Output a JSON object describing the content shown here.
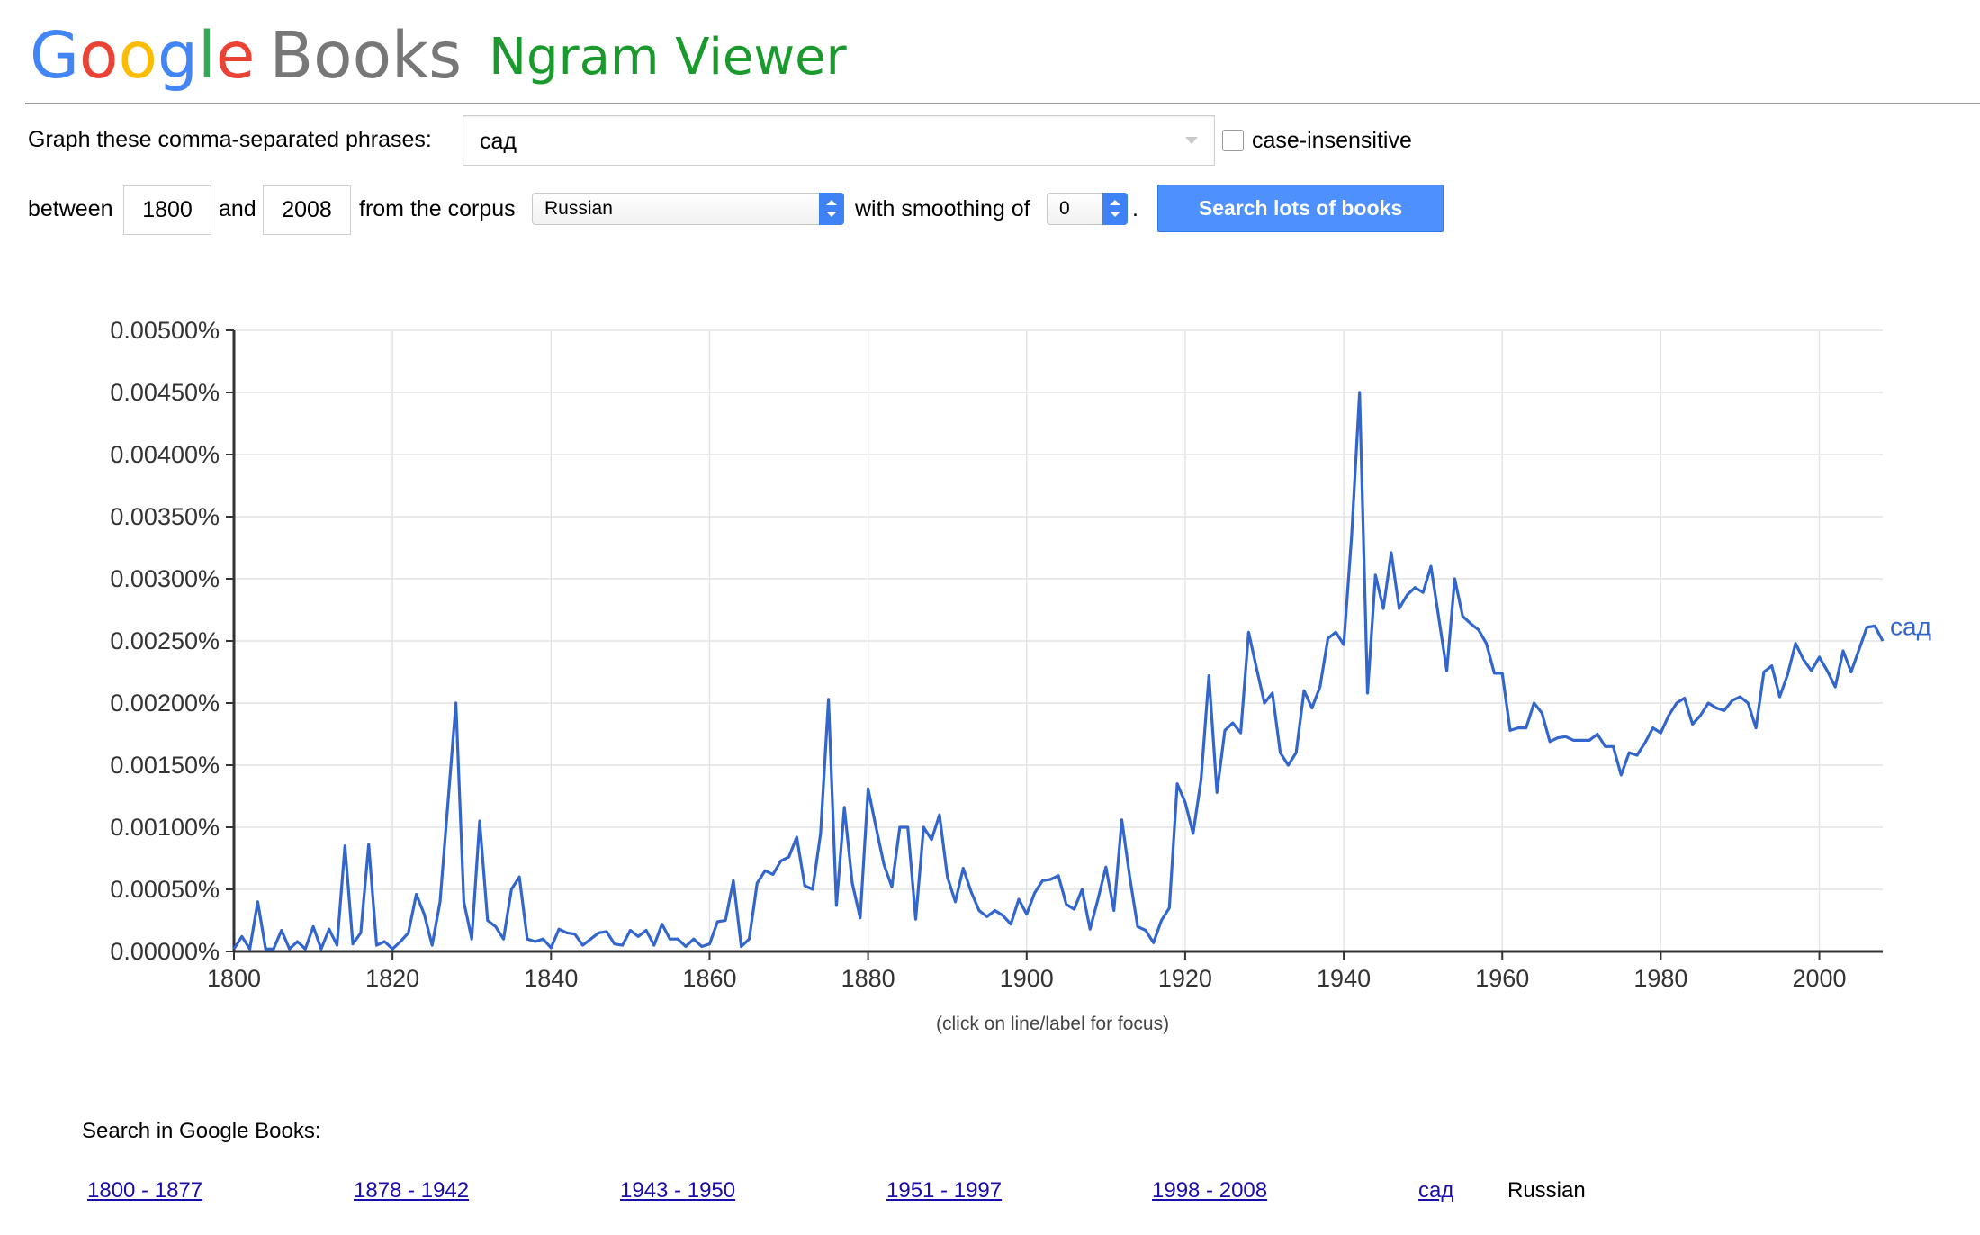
{
  "header": {
    "brand_google": "Google",
    "brand_books": "Books",
    "app_title": "Ngram Viewer",
    "google_colors": [
      "#4285f4",
      "#ea4335",
      "#fbbc05",
      "#4285f4",
      "#34a853",
      "#ea4335"
    ]
  },
  "form": {
    "phrases_label": "Graph these comma-separated phrases:",
    "phrases_value": "сад",
    "case_insensitive_label": "case-insensitive",
    "between_label": "between",
    "year_start": "1800",
    "and_label": "and",
    "year_end": "2008",
    "corpus_label": "from the corpus",
    "corpus_value": "Russian",
    "smoothing_label": "with smoothing of",
    "smoothing_value": "0",
    "period": ".",
    "search_button": "Search lots of books"
  },
  "chart_note": "(click on line/label for focus)",
  "chart_data": {
    "type": "line",
    "title": "",
    "xlabel": "",
    "ylabel": "",
    "xlim": [
      1800,
      2008
    ],
    "ylim": [
      0,
      0.005
    ],
    "x_ticks": [
      1800,
      1820,
      1840,
      1860,
      1880,
      1900,
      1920,
      1940,
      1960,
      1980,
      2000
    ],
    "y_tick_labels": [
      "0.00000%",
      "0.00050%",
      "0.00100%",
      "0.00150%",
      "0.00200%",
      "0.00250%",
      "0.00300%",
      "0.00350%",
      "0.00400%",
      "0.00450%",
      "0.00500%"
    ],
    "y_ticks": [
      0,
      0.0005,
      0.001,
      0.0015,
      0.002,
      0.0025,
      0.003,
      0.0035,
      0.004,
      0.0045,
      0.005
    ],
    "grid": true,
    "line_color": "#3366cc",
    "series": [
      {
        "name": "сад",
        "x": [
          1800,
          1801,
          1802,
          1803,
          1804,
          1805,
          1806,
          1807,
          1808,
          1809,
          1810,
          1811,
          1812,
          1813,
          1814,
          1815,
          1816,
          1817,
          1818,
          1819,
          1820,
          1821,
          1822,
          1823,
          1824,
          1825,
          1826,
          1827,
          1828,
          1829,
          1830,
          1831,
          1832,
          1833,
          1834,
          1835,
          1836,
          1837,
          1838,
          1839,
          1840,
          1841,
          1842,
          1843,
          1844,
          1845,
          1846,
          1847,
          1848,
          1849,
          1850,
          1851,
          1852,
          1853,
          1854,
          1855,
          1856,
          1857,
          1858,
          1859,
          1860,
          1861,
          1862,
          1863,
          1864,
          1865,
          1866,
          1867,
          1868,
          1869,
          1870,
          1871,
          1872,
          1873,
          1874,
          1875,
          1876,
          1877,
          1878,
          1879,
          1880,
          1881,
          1882,
          1883,
          1884,
          1885,
          1886,
          1887,
          1888,
          1889,
          1890,
          1891,
          1892,
          1893,
          1894,
          1895,
          1896,
          1897,
          1898,
          1899,
          1900,
          1901,
          1902,
          1903,
          1904,
          1905,
          1906,
          1907,
          1908,
          1909,
          1910,
          1911,
          1912,
          1913,
          1914,
          1915,
          1916,
          1917,
          1918,
          1919,
          1920,
          1921,
          1922,
          1923,
          1924,
          1925,
          1926,
          1927,
          1928,
          1929,
          1930,
          1931,
          1932,
          1933,
          1934,
          1935,
          1936,
          1937,
          1938,
          1939,
          1940,
          1941,
          1942,
          1943,
          1944,
          1945,
          1946,
          1947,
          1948,
          1949,
          1950,
          1951,
          1952,
          1953,
          1954,
          1955,
          1956,
          1957,
          1958,
          1959,
          1960,
          1961,
          1962,
          1963,
          1964,
          1965,
          1966,
          1967,
          1968,
          1969,
          1970,
          1971,
          1972,
          1973,
          1974,
          1975,
          1976,
          1977,
          1978,
          1979,
          1980,
          1981,
          1982,
          1983,
          1984,
          1985,
          1986,
          1987,
          1988,
          1989,
          1990,
          1991,
          1992,
          1993,
          1994,
          1995,
          1996,
          1997,
          1998,
          1999,
          2000,
          2001,
          2002,
          2003,
          2004,
          2005,
          2006,
          2007,
          2008
        ],
        "y": [
          2e-05,
          0.00012,
          2e-05,
          0.0004,
          2e-05,
          2e-05,
          0.00017,
          2e-05,
          8e-05,
          2e-05,
          0.0002,
          2e-05,
          0.00018,
          5e-05,
          0.00085,
          6e-05,
          0.00015,
          0.00086,
          5e-05,
          8e-05,
          2e-05,
          8e-05,
          0.00015,
          0.00046,
          0.0003,
          5e-05,
          0.0004,
          0.0012,
          0.002,
          0.0004,
          0.0001,
          0.00105,
          0.00025,
          0.0002,
          0.0001,
          0.0005,
          0.0006,
          0.0001,
          8e-05,
          0.0001,
          3e-05,
          0.00018,
          0.00015,
          0.00014,
          5e-05,
          0.0001,
          0.00015,
          0.00016,
          6e-05,
          5e-05,
          0.00017,
          0.00012,
          0.00017,
          5e-05,
          0.00022,
          0.0001,
          0.0001,
          4e-05,
          0.0001,
          4e-05,
          6e-05,
          0.00024,
          0.00025,
          0.00057,
          4e-05,
          0.0001,
          0.00055,
          0.00065,
          0.00062,
          0.00073,
          0.00076,
          0.00092,
          0.00053,
          0.0005,
          0.00095,
          0.00203,
          0.00037,
          0.00116,
          0.00055,
          0.00027,
          0.00131,
          0.001,
          0.0007,
          0.00052,
          0.001,
          0.001,
          0.00026,
          0.001,
          0.0009,
          0.0011,
          0.0006,
          0.0004,
          0.00067,
          0.00048,
          0.00033,
          0.00028,
          0.00033,
          0.00029,
          0.00022,
          0.00042,
          0.0003,
          0.00047,
          0.00057,
          0.00058,
          0.00061,
          0.00038,
          0.00034,
          0.0005,
          0.00018,
          0.00042,
          0.00068,
          0.00033,
          0.00106,
          0.0006,
          0.0002,
          0.00017,
          7e-05,
          0.00025,
          0.00035,
          0.00135,
          0.0012,
          0.00095,
          0.00138,
          0.00222,
          0.00128,
          0.00178,
          0.00184,
          0.00176,
          0.00257,
          0.00228,
          0.002,
          0.00208,
          0.0016,
          0.0015,
          0.0016,
          0.0021,
          0.00196,
          0.00213,
          0.00252,
          0.00257,
          0.00247,
          0.00335,
          0.0045,
          0.00208,
          0.00303,
          0.00276,
          0.00321,
          0.00276,
          0.00287,
          0.00293,
          0.00289,
          0.0031,
          0.00268,
          0.00226,
          0.003,
          0.0027,
          0.00264,
          0.00259,
          0.00248,
          0.00224,
          0.00224,
          0.00178,
          0.0018,
          0.0018,
          0.002,
          0.00192,
          0.00169,
          0.00172,
          0.00173,
          0.0017,
          0.0017,
          0.0017,
          0.00175,
          0.00165,
          0.00165,
          0.00142,
          0.0016,
          0.00158,
          0.00168,
          0.0018,
          0.00176,
          0.0019,
          0.002,
          0.00204,
          0.00183,
          0.0019,
          0.002,
          0.00196,
          0.00194,
          0.00202,
          0.00205,
          0.002,
          0.0018,
          0.00225,
          0.0023,
          0.00205,
          0.00223,
          0.00248,
          0.00235,
          0.00226,
          0.00237,
          0.00226,
          0.00213,
          0.00242,
          0.00225,
          0.00243,
          0.00261,
          0.00262,
          0.0025
        ]
      }
    ]
  },
  "footer": {
    "search_in_label": "Search in Google Books:",
    "ranges": [
      "1800 - 1877",
      "1878 - 1942",
      "1943 - 1950",
      "1951 - 1997",
      "1998 - 2008"
    ],
    "phrase_link": "сад",
    "corpus": "Russian"
  }
}
